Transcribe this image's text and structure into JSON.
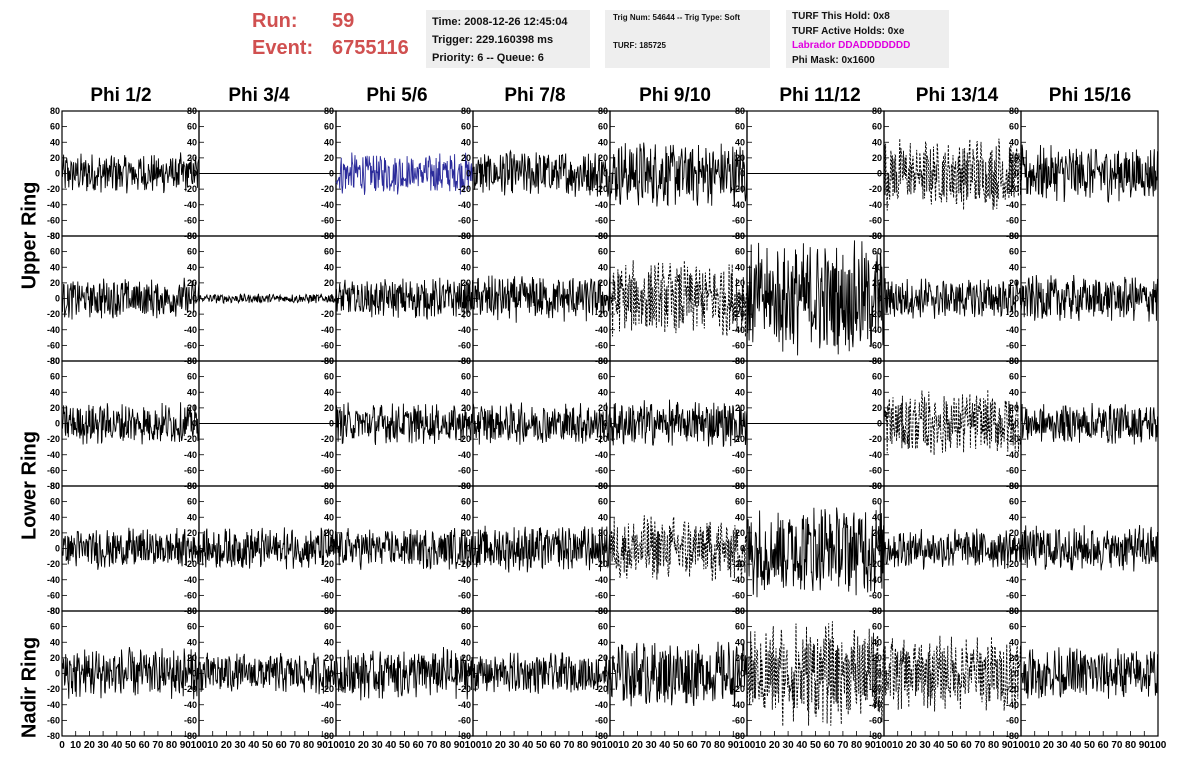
{
  "run": {
    "run_label": "Run:",
    "run_value": "59",
    "event_label": "Event:",
    "event_value": "6755116"
  },
  "time_box": {
    "time": "Time: 2008-12-26 12:45:04",
    "trigger": "Trigger: 229.160398 ms",
    "priority": "Priority: 6 -- Queue: 6"
  },
  "trig_box": {
    "trig": "Trig Num: 54644 -- Trig Type: Soft",
    "turf": "TURF: 185725"
  },
  "turf_box": {
    "this_hold": "TURF This Hold: 0x8",
    "active_holds": "TURF Active Holds: 0xe",
    "labrador": "Labrador DDADDDDDDD",
    "phi_mask": "Phi Mask: 0x1600",
    "labrador_color": "#e000e0"
  },
  "phi_headers": [
    "Phi 1/2",
    "Phi 3/4",
    "Phi 5/6",
    "Phi 7/8",
    "Phi 9/10",
    "Phi 11/12",
    "Phi 13/14",
    "Phi 15/16"
  ],
  "ring_labels": [
    "Upper Ring",
    "Lower Ring",
    "Nadir Ring"
  ],
  "colors": {
    "trace": "#000000",
    "highlight_trace": "#2a2a9a",
    "header_run": "#d05050",
    "info_bg": "#eeeeee"
  },
  "chart_data": {
    "type": "line",
    "title": "",
    "xlabel": "",
    "ylabel": "",
    "xlim": [
      0,
      100
    ],
    "ylim": [
      -80,
      80
    ],
    "x_ticks": [
      0,
      10,
      20,
      30,
      40,
      50,
      60,
      70,
      80,
      90,
      100
    ],
    "x_tick_labels": [
      "0",
      "10",
      "20",
      "30",
      "40",
      "50",
      "60",
      "70",
      "80",
      "90",
      "100"
    ],
    "y_ticks": [
      -80,
      -60,
      -40,
      -20,
      0,
      20,
      40,
      60,
      80
    ],
    "grid": false,
    "rows": 5,
    "cols": 8,
    "style_legend": {
      "s": "solid black trace",
      "d": "dashed black trace",
      "b": "solid blue trace",
      "f": "flat line"
    },
    "panels": [
      [
        "s",
        "f",
        "b",
        "s",
        "s",
        "f",
        "d",
        "s"
      ],
      [
        "s",
        "s",
        "s",
        "s",
        "d",
        "s",
        "s",
        "s"
      ],
      [
        "s",
        "f",
        "s",
        "s",
        "s",
        "f",
        "d",
        "s"
      ],
      [
        "s",
        "s",
        "s",
        "s",
        "d",
        "s",
        "s",
        "s"
      ],
      [
        "s",
        "s",
        "s",
        "s",
        "s",
        "d",
        "d",
        "s"
      ]
    ],
    "amplitudes": [
      [
        22,
        0,
        22,
        25,
        35,
        0,
        40,
        30
      ],
      [
        22,
        5,
        22,
        25,
        40,
        60,
        22,
        25
      ],
      [
        22,
        0,
        22,
        22,
        25,
        0,
        35,
        22
      ],
      [
        22,
        22,
        22,
        25,
        35,
        50,
        22,
        25
      ],
      [
        28,
        22,
        28,
        22,
        35,
        55,
        40,
        28
      ]
    ]
  }
}
